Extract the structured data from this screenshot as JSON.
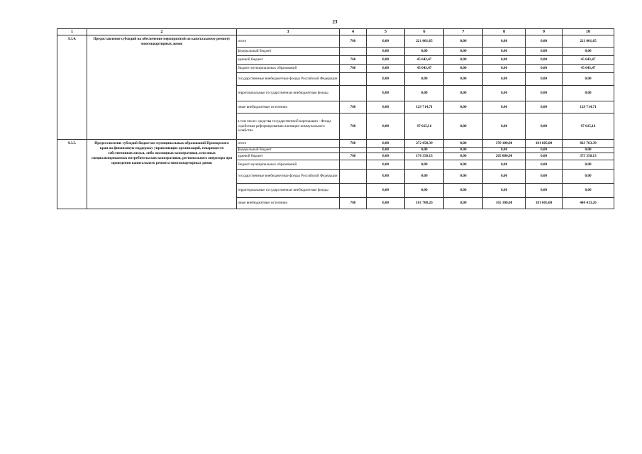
{
  "page_number": "23",
  "columns": [
    "1",
    "2",
    "3",
    "4",
    "5",
    "6",
    "7",
    "8",
    "9",
    "10"
  ],
  "sections": [
    {
      "code": "9.3.4.",
      "name": "Предоставление субсидий на обеспечение мероприятий по капитальному ремонту многоквартирных домов",
      "rows": [
        {
          "source": "итого",
          "c4": "768",
          "c5": "0,00",
          "c6": "221 001,65",
          "c7": "0,00",
          "c8": "0,00",
          "c9": "0,00",
          "c10": "221 001,65"
        },
        {
          "source": "федеральный бюджет",
          "c4": "",
          "c5": "0,00",
          "c6": "0,00",
          "c7": "0,00",
          "c8": "0,00",
          "c9": "0,00",
          "c10": "0,00"
        },
        {
          "source": "краевой бюджет",
          "c4": "768",
          "c5": "0,00",
          "c6": "45 643,47",
          "c7": "0,00",
          "c8": "0,00",
          "c9": "0,00",
          "c10": "45 643,47"
        },
        {
          "source": "бюджет муниципальных образований",
          "c4": "768",
          "c5": "0,00",
          "c6": "45 643,47",
          "c7": "0,00",
          "c8": "0,00",
          "c9": "0,00",
          "c10": "45 643,47"
        },
        {
          "source": "государственные внебюджетные фонды Российской Федерации",
          "c4": "",
          "c5": "0,00",
          "c6": "0,00",
          "c7": "0,00",
          "c8": "0,00",
          "c9": "0,00",
          "c10": "0,00"
        },
        {
          "source": "территориальные государственные внебюджетные фонды",
          "c4": "",
          "c5": "0,00",
          "c6": "0,00",
          "c7": "0,00",
          "c8": "0,00",
          "c9": "0,00",
          "c10": "0,00"
        },
        {
          "source": "иные внебюджетные источники",
          "c4": "768",
          "c5": "0,00",
          "c6": "129 714,71",
          "c7": "0,00",
          "c8": "0,00",
          "c9": "0,00",
          "c10": "129 714,71"
        },
        {
          "source": "в том числе: средства государственной корпорации - Фонда содействия реформированию жилищно-коммунального хозяйства",
          "c4": "768",
          "c5": "0,00",
          "c6": "97 615,16",
          "c7": "0,00",
          "c8": "0,00",
          "c9": "0,00",
          "c10": "97 615,16"
        }
      ]
    },
    {
      "code": "9.3.5.",
      "name": "Предоставление субсидий бюджетам муниципальных образований Приморского края на финансовую поддержку управляющих организаций, товариществ собственников жилья, либо жилищных кооперативов, или иных специализированных потребительских кооперативов, регионального оператора при проведении капитального ремонта многоквартирных домов",
      "rows": [
        {
          "source": "итого",
          "c4": "768",
          "c5": "0,00",
          "c6": "272 058,39",
          "c7": "0,00",
          "c8": "370 100,00",
          "c9": "181 605,00",
          "c10": "823 763,39"
        },
        {
          "source": "федеральный бюджет",
          "c4": "",
          "c5": "0,00",
          "c6": "0,00",
          "c7": "0,00",
          "c8": "0,00",
          "c9": "0,00",
          "c10": "0,00"
        },
        {
          "source": "краевой бюджет",
          "c4": "768",
          "c5": "0,00",
          "c6": "170 350,13",
          "c7": "0,00",
          "c8": "205 000,00",
          "c9": "0,00",
          "c10": "375 350,13"
        },
        {
          "source": "бюджет муниципальных образований",
          "c4": "",
          "c5": "0,00",
          "c6": "0,00",
          "c7": "0,00",
          "c8": "0,00",
          "c9": "0,00",
          "c10": "0,00"
        },
        {
          "source": "государственные внебюджетные фонды Российской Федерации",
          "c4": "",
          "c5": "0,00",
          "c6": "0,00",
          "c7": "0,00",
          "c8": "0,00",
          "c9": "0,00",
          "c10": "0,00"
        },
        {
          "source": "территориальные государственные внебюджетные фонды",
          "c4": "",
          "c5": "0,00",
          "c6": "0,00",
          "c7": "0,00",
          "c8": "0,00",
          "c9": "0,00",
          "c10": "0,00"
        },
        {
          "source": "иные внебюджетные источники",
          "c4": "768",
          "c5": "0,00",
          "c6": "101 708,26",
          "c7": "0,00",
          "c8": "165 100,00",
          "c9": "181 605,00",
          "c10": "448 413,26"
        }
      ]
    }
  ]
}
